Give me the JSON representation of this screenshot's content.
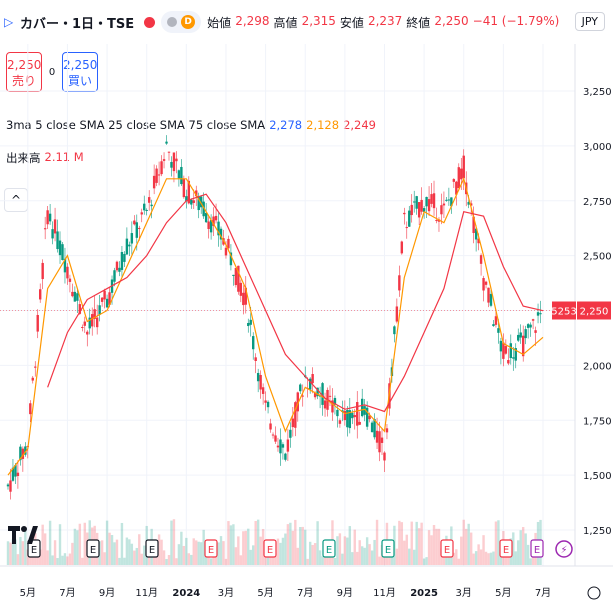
{
  "header": {
    "symbol": "カバー・1日・TSE",
    "mode": "D",
    "open_label": "始値",
    "open_value": "2,298",
    "high_label": "高値",
    "high_value": "2,315",
    "low_label": "安値",
    "low_value": "2,237",
    "close_label": "終値",
    "close_value": "2,250",
    "change": "−41 (−1.79%)"
  },
  "currency": "JPY",
  "trade": {
    "sell_price": "2,250",
    "sell_label": "売り",
    "spread": "0",
    "buy_price": "2,250",
    "buy_label": "買い"
  },
  "indicator": {
    "label": "3ma 5 close SMA 25 close SMA 75 close SMA",
    "ma5": "2,278",
    "ma25": "2,128",
    "ma75": "2,249"
  },
  "volume": {
    "label": "出来高",
    "value": "2.11 M"
  },
  "collapse_icon": "chevron-up-icon",
  "price_axis": {
    "ticks": [
      "3,250",
      "3,000",
      "2,750",
      "2,500",
      "2,250",
      "2,000",
      "1,750",
      "1,500",
      "1,250"
    ]
  },
  "price_labels": {
    "volume_tag": "5253",
    "price_tag": "2,250"
  },
  "time_axis": {
    "ticks": [
      "5月",
      "7月",
      "9月",
      "11月",
      "2024",
      "3月",
      "5月",
      "7月",
      "9月",
      "11月",
      "2025",
      "3月",
      "5月",
      "7月"
    ]
  },
  "events": [
    "E",
    "E",
    "E",
    "E",
    "E",
    "E",
    "E",
    "E",
    "E",
    "E",
    "dividend",
    "E"
  ],
  "colors": {
    "up": "#089981",
    "down": "#f23645",
    "ma5": "#2962ff",
    "ma25": "#ff9800",
    "ma75": "#f23645",
    "accent": "#2962ff"
  },
  "chart_data": {
    "type": "line",
    "title": "カバー・1日・TSE",
    "x": [
      "2023-04",
      "2023-05",
      "2023-06",
      "2023-07",
      "2023-08",
      "2023-09",
      "2023-10",
      "2023-11",
      "2023-12",
      "2024-01",
      "2024-02",
      "2024-03",
      "2024-04",
      "2024-05",
      "2024-06",
      "2024-07",
      "2024-08",
      "2024-09",
      "2024-10",
      "2024-11",
      "2024-12",
      "2025-01",
      "2025-02",
      "2025-03",
      "2025-04",
      "2025-05",
      "2025-06",
      "2025-07"
    ],
    "series": [
      {
        "name": "close",
        "values": [
          1450,
          1650,
          2700,
          2450,
          2150,
          2300,
          2550,
          2700,
          3000,
          2800,
          2700,
          2550,
          2300,
          1800,
          1600,
          1950,
          1850,
          1750,
          1800,
          1600,
          2650,
          2750,
          2700,
          2900,
          2400,
          2050,
          2100,
          2250
        ]
      },
      {
        "name": "SMA 25",
        "values": [
          1500,
          1620,
          2350,
          2500,
          2200,
          2250,
          2450,
          2650,
          2850,
          2850,
          2700,
          2550,
          2350,
          1950,
          1700,
          1900,
          1850,
          1780,
          1800,
          1700,
          2400,
          2700,
          2650,
          2850,
          2500,
          2100,
          2050,
          2128
        ]
      },
      {
        "name": "SMA 75",
        "values": [
          null,
          null,
          1900,
          2150,
          2300,
          2350,
          2400,
          2500,
          2650,
          2750,
          2780,
          2650,
          2450,
          2250,
          2050,
          1950,
          1850,
          1800,
          1820,
          1790,
          1950,
          2150,
          2350,
          2700,
          2680,
          2450,
          2270,
          2249
        ]
      }
    ],
    "ylim": [
      1100,
      3450
    ],
    "xlabel": "",
    "ylabel": "",
    "grid": true
  }
}
